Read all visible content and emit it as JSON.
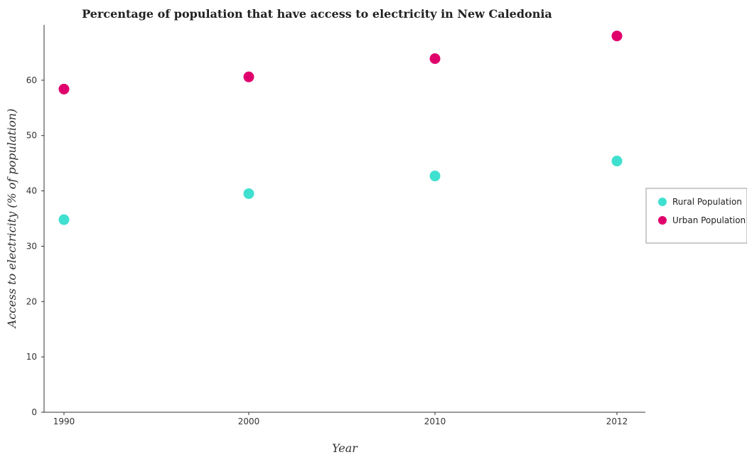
{
  "chart_data": {
    "type": "scatter",
    "title": "Percentage of population that have access to electricity in New Caledonia",
    "xlabel": "Year",
    "ylabel": "Access to electricity (% of population)",
    "categories": [
      "1990",
      "2000",
      "2010",
      "2012"
    ],
    "ylim": [
      0,
      70
    ],
    "yticks": [
      "0",
      "10",
      "20",
      "30",
      "40",
      "50",
      "60"
    ],
    "grid": false,
    "legend_position": "right",
    "series": [
      {
        "name": "Rural Population",
        "color": "#40e0d0",
        "values": [
          34.8,
          39.5,
          42.7,
          45.4
        ]
      },
      {
        "name": "Urban Population",
        "color": "#e0006c",
        "values": [
          58.4,
          60.6,
          63.9,
          68.0
        ]
      }
    ]
  }
}
